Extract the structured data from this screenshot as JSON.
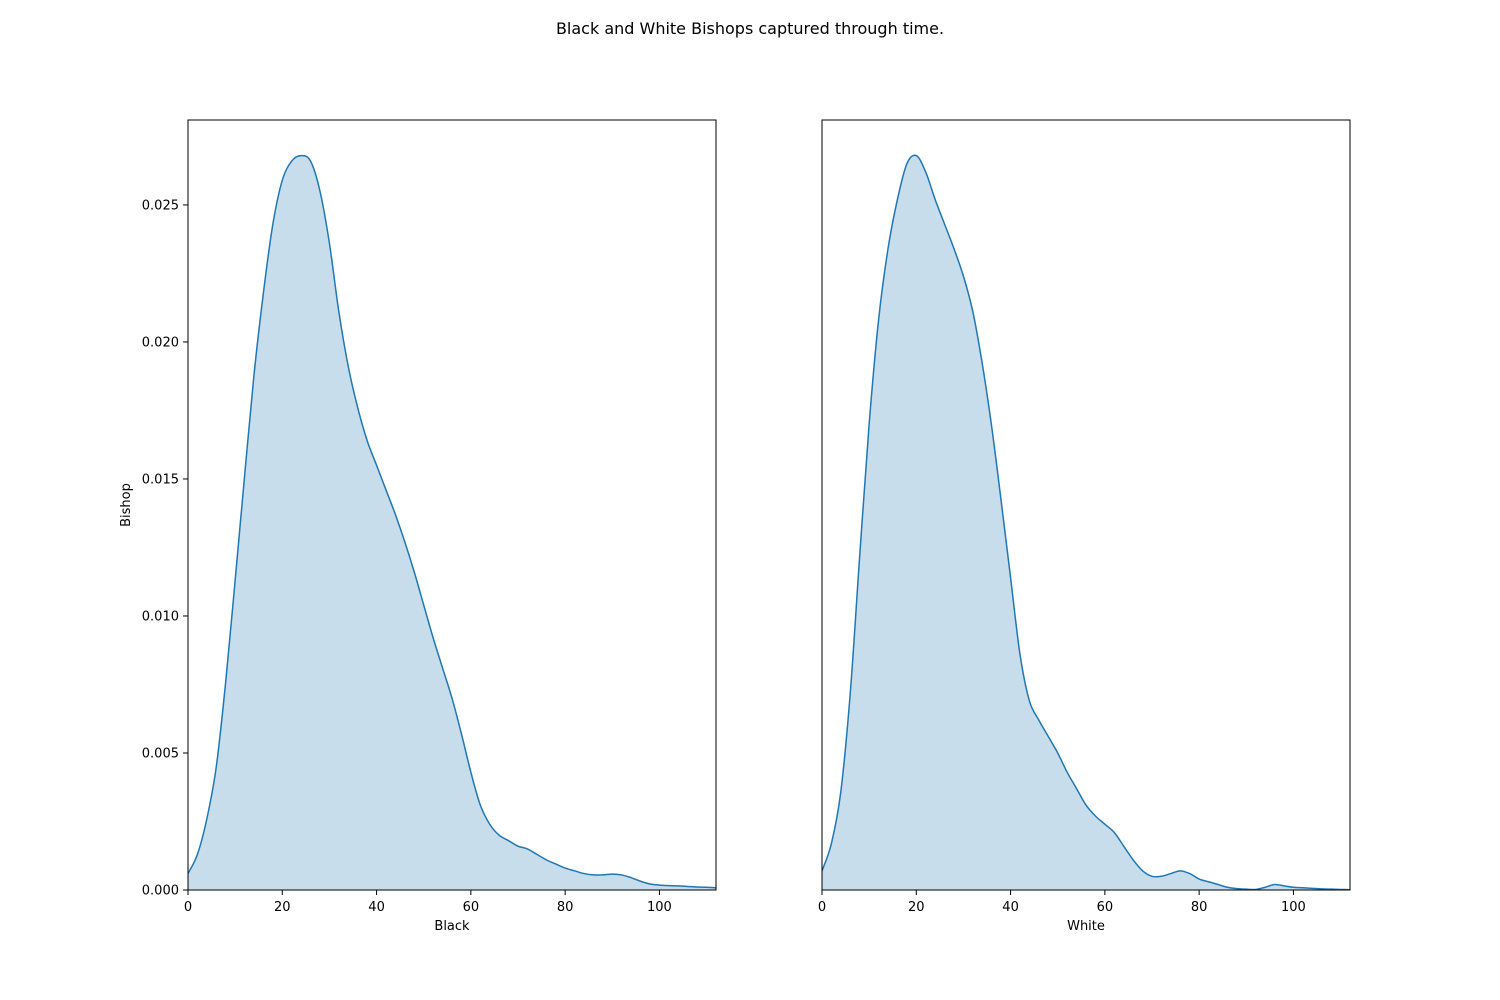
{
  "figure": {
    "title": "Black and White Bishops captured through time."
  },
  "colors": {
    "line": "#1f77b4",
    "fill": "#1f77b4",
    "fill_opacity": 0.25,
    "frame": "#000000",
    "background": "#ffffff"
  },
  "chart_data": [
    {
      "type": "area",
      "chart_kind": "kde",
      "xlabel": "Black",
      "ylabel": "Bishop",
      "xlim": [
        0,
        112
      ],
      "ylim": [
        0,
        0.0281
      ],
      "xticks": [
        0,
        20,
        40,
        60,
        80,
        100
      ],
      "yticks": [
        0,
        0.005,
        0.01,
        0.015,
        0.02,
        0.025
      ],
      "ytick_labels": [
        "0.000",
        "0.005",
        "0.010",
        "0.015",
        "0.020",
        "0.025"
      ],
      "show_yticks": true,
      "grid": false,
      "x": [
        0,
        2,
        4,
        6,
        8,
        10,
        12,
        14,
        16,
        18,
        20,
        22,
        24,
        26,
        28,
        30,
        32,
        34,
        36,
        38,
        40,
        42,
        44,
        46,
        48,
        50,
        52,
        54,
        56,
        58,
        60,
        62,
        64,
        66,
        68,
        70,
        72,
        74,
        76,
        78,
        80,
        82,
        84,
        86,
        88,
        90,
        92,
        94,
        96,
        98,
        100,
        102,
        104,
        106,
        108,
        110,
        112
      ],
      "y": [
        0.0006,
        0.0013,
        0.0026,
        0.0045,
        0.0076,
        0.0113,
        0.0151,
        0.0188,
        0.0218,
        0.0243,
        0.0259,
        0.0266,
        0.0268,
        0.0266,
        0.0255,
        0.0236,
        0.0211,
        0.0191,
        0.0176,
        0.0164,
        0.0155,
        0.0146,
        0.0137,
        0.0127,
        0.0116,
        0.0104,
        0.0092,
        0.0081,
        0.007,
        0.0057,
        0.0043,
        0.0031,
        0.0024,
        0.002,
        0.0018,
        0.0016,
        0.0015,
        0.0013,
        0.0011,
        0.00095,
        0.0008,
        0.0007,
        0.0006,
        0.00055,
        0.00055,
        0.00058,
        0.00055,
        0.00045,
        0.00032,
        0.00022,
        0.00018,
        0.00016,
        0.00015,
        0.00013,
        0.00011,
        0.0001,
        8e-05
      ]
    },
    {
      "type": "area",
      "chart_kind": "kde",
      "xlabel": "White",
      "ylabel": "",
      "xlim": [
        0,
        112
      ],
      "ylim": [
        0,
        0.0281
      ],
      "xticks": [
        0,
        20,
        40,
        60,
        80,
        100
      ],
      "yticks": [],
      "ytick_labels": [],
      "show_yticks": false,
      "grid": false,
      "x": [
        0,
        2,
        4,
        6,
        8,
        10,
        12,
        14,
        16,
        18,
        20,
        22,
        24,
        26,
        28,
        30,
        32,
        34,
        36,
        38,
        40,
        42,
        44,
        46,
        48,
        50,
        52,
        54,
        56,
        58,
        60,
        62,
        64,
        66,
        68,
        70,
        72,
        74,
        76,
        78,
        80,
        82,
        84,
        86,
        88,
        90,
        92,
        94,
        96,
        98,
        100,
        102,
        104,
        106,
        108,
        110,
        112
      ],
      "y": [
        0.0007,
        0.0017,
        0.0036,
        0.0072,
        0.0122,
        0.017,
        0.0208,
        0.0234,
        0.0252,
        0.0265,
        0.0268,
        0.0262,
        0.0252,
        0.0243,
        0.0234,
        0.0224,
        0.0211,
        0.0192,
        0.0169,
        0.0142,
        0.0114,
        0.0086,
        0.0069,
        0.0062,
        0.0056,
        0.005,
        0.0043,
        0.0037,
        0.0031,
        0.0027,
        0.0024,
        0.0021,
        0.0016,
        0.0011,
        0.0007,
        0.0005,
        0.0005,
        0.0006,
        0.0007,
        0.0006,
        0.0004,
        0.0003,
        0.0002,
        0.0001,
        5e-05,
        3e-05,
        2e-05,
        0.0001,
        0.0002,
        0.00015,
        0.0001,
        8e-05,
        6e-05,
        4e-05,
        3e-05,
        2e-05,
        1e-05
      ]
    }
  ]
}
